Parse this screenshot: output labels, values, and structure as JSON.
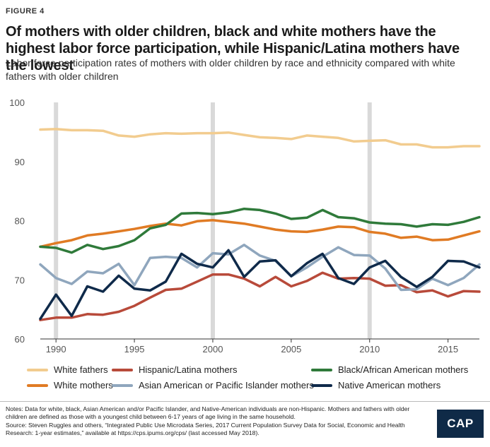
{
  "figure_label": "FIGURE 4",
  "title": "Of mothers with older children, black and white mothers have the highest labor force participation, while Hispanic/Latina mothers have the lowest",
  "subtitle": "Labor force participation rates of mothers with older children by race and ethnicity compared with white fathers with older children",
  "notes": "Notes: Data for white, black, Asian American and/or Pacific Islander, and Native-American individuals are non-Hispanic. Mothers and fathers with older children are defined as those with a youngest child between 6-17 years of age living in the same household.",
  "source": "Source: Steven Ruggles and others, “Integrated Public Use Microdata Series, 2017 Current Population Survey Data for Social, Economic and Health Research: 1-year estimates,” available at https://cps.ipums.org/cps/ (last accessed May 2018).",
  "logo_text": "CAP",
  "chart_data": {
    "type": "line",
    "title": "",
    "xlabel": "",
    "ylabel": "",
    "xlim": [
      1989,
      2017
    ],
    "ylim": [
      60,
      100
    ],
    "x_ticks": [
      1990,
      1995,
      2000,
      2005,
      2010,
      2015
    ],
    "y_ticks": [
      60,
      70,
      80,
      90,
      100
    ],
    "grid": false,
    "recession_bars": [
      1990,
      2000,
      2010
    ],
    "legend_position": "bottom",
    "x": [
      1989,
      1990,
      1991,
      1992,
      1993,
      1994,
      1995,
      1996,
      1997,
      1998,
      1999,
      2000,
      2001,
      2002,
      2003,
      2004,
      2005,
      2006,
      2007,
      2008,
      2009,
      2010,
      2011,
      2012,
      2013,
      2014,
      2015,
      2016,
      2017
    ],
    "series": [
      {
        "name": "White fathers",
        "color": "#f2cc8f",
        "values": [
          95.4,
          95.5,
          95.3,
          95.3,
          95.2,
          94.4,
          94.2,
          94.6,
          94.8,
          94.7,
          94.8,
          94.8,
          94.9,
          94.5,
          94.1,
          94.0,
          93.8,
          94.4,
          94.2,
          94.0,
          93.4,
          93.5,
          93.6,
          92.9,
          92.9,
          92.4,
          92.4,
          92.6,
          92.6
        ]
      },
      {
        "name": "White mothers",
        "color": "#e07b24",
        "values": [
          75.6,
          76.2,
          76.7,
          77.5,
          77.8,
          78.2,
          78.6,
          79.1,
          79.5,
          79.2,
          79.9,
          80.1,
          79.8,
          79.5,
          79.0,
          78.5,
          78.2,
          78.1,
          78.5,
          79.0,
          78.9,
          78.1,
          77.8,
          77.1,
          77.3,
          76.7,
          76.8,
          77.5,
          78.2
        ]
      },
      {
        "name": "Hispanic/Latina mothers",
        "color": "#b84a3a",
        "values": [
          63.2,
          63.6,
          63.6,
          64.2,
          64.1,
          64.6,
          65.6,
          67.0,
          68.3,
          68.5,
          69.7,
          70.9,
          70.9,
          70.2,
          68.9,
          70.5,
          68.9,
          69.8,
          71.2,
          70.2,
          70.3,
          70.2,
          69.0,
          69.1,
          67.9,
          68.2,
          67.2,
          68.1,
          68.0
        ]
      },
      {
        "name": "Asian American or Pacific Islander mothers",
        "color": "#8fa6bd",
        "values": [
          72.6,
          70.3,
          69.3,
          71.4,
          71.1,
          72.7,
          69.1,
          73.7,
          73.9,
          73.7,
          72.1,
          74.5,
          74.3,
          75.9,
          74.1,
          73.2,
          70.6,
          72.1,
          73.9,
          75.5,
          74.2,
          74.1,
          71.9,
          68.3,
          68.4,
          70.2,
          69.1,
          70.3,
          72.6
        ]
      },
      {
        "name": "Black/African American mothers",
        "color": "#2f7a3a",
        "values": [
          75.6,
          75.4,
          74.6,
          75.9,
          75.2,
          75.7,
          76.7,
          78.7,
          79.3,
          81.2,
          81.3,
          81.1,
          81.4,
          82.0,
          81.8,
          81.2,
          80.3,
          80.5,
          81.8,
          80.6,
          80.4,
          79.7,
          79.5,
          79.4,
          79.0,
          79.4,
          79.3,
          79.8,
          80.6
        ]
      },
      {
        "name": "Native American mothers",
        "color": "#0f2a4a",
        "values": [
          63.4,
          67.5,
          63.9,
          68.9,
          68.0,
          70.7,
          68.5,
          68.2,
          69.7,
          74.4,
          72.7,
          72.1,
          75.0,
          70.5,
          73.1,
          73.3,
          70.6,
          72.8,
          74.4,
          70.3,
          69.3,
          72.1,
          73.2,
          70.5,
          68.8,
          70.5,
          73.2,
          73.1,
          72.1
        ]
      }
    ]
  }
}
